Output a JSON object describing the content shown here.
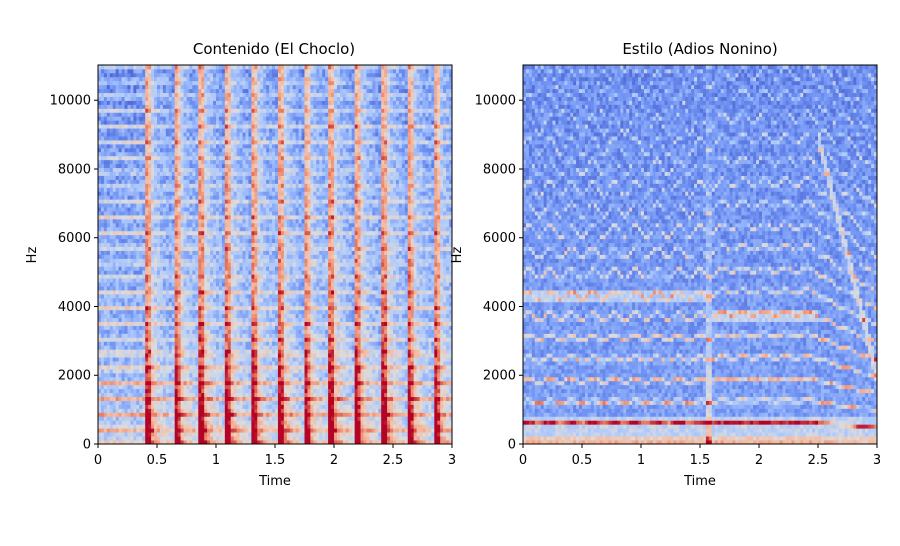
{
  "colors": {
    "background": "#3b4cc0",
    "colormap": [
      "#3b4cc0",
      "#6f92f3",
      "#aac7fd",
      "#dddcdc",
      "#f7b89c",
      "#e7745b",
      "#b40426"
    ]
  },
  "chart_data": [
    {
      "type": "heatmap",
      "title": "Contenido (El Choclo)",
      "xlabel": "Time",
      "ylabel": "Hz",
      "xlim": [
        0,
        3
      ],
      "ylim": [
        0,
        11025
      ],
      "x_ticks": [
        "0",
        "0.5",
        "1",
        "1.5",
        "2",
        "2.5",
        "3"
      ],
      "x_tick_values": [
        0,
        0.5,
        1,
        1.5,
        2,
        2.5,
        3
      ],
      "y_ticks": [
        "0",
        "2000",
        "4000",
        "6000",
        "8000",
        "10000"
      ],
      "y_tick_values": [
        0,
        2000,
        4000,
        6000,
        8000,
        10000
      ],
      "colormap": "coolwarm",
      "onsets_s": [
        0.42,
        0.66,
        0.88,
        1.1,
        1.32,
        1.55,
        1.76,
        1.98,
        2.2,
        2.43,
        2.64,
        2.86
      ]
    },
    {
      "type": "heatmap",
      "title": "Estilo (Adios Nonino)",
      "xlabel": "Time",
      "ylabel": "Hz",
      "xlim": [
        0,
        3
      ],
      "ylim": [
        0,
        11025
      ],
      "x_ticks": [
        "0",
        "0.5",
        "1",
        "1.5",
        "2",
        "2.5",
        "3"
      ],
      "x_tick_values": [
        0,
        0.5,
        1,
        1.5,
        2,
        2.5,
        3
      ],
      "y_ticks": [
        "0",
        "2000",
        "4000",
        "6000",
        "8000",
        "10000"
      ],
      "y_tick_values": [
        0,
        2000,
        4000,
        6000,
        8000,
        10000
      ],
      "colormap": "coolwarm",
      "onsets_s": [
        1.58,
        2.45
      ]
    }
  ]
}
